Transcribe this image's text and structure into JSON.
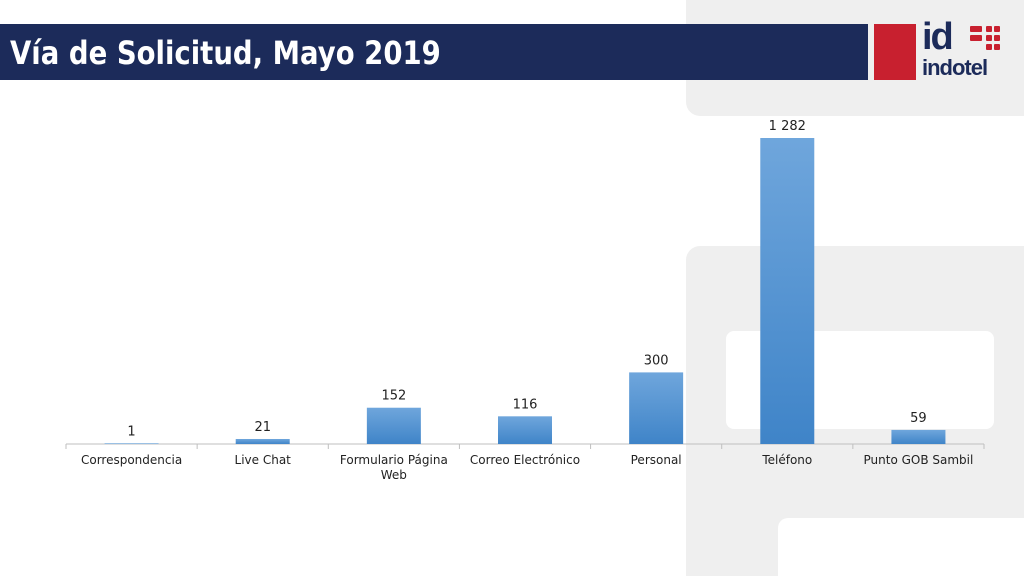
{
  "slide": {
    "title": "Vía de Solicitud, Mayo 2019",
    "logo_mark": "id",
    "logo_name": "indotel"
  },
  "colors": {
    "title_bar": "#1c2b5a",
    "brand_red": "#c8202f",
    "bar_top": "#6fa6dc",
    "bar_bottom": "#3f84c8",
    "axis": "#bfbfbf"
  },
  "chart_data": {
    "type": "bar",
    "title": "",
    "xlabel": "",
    "ylabel": "",
    "ylim": [
      0,
      1300
    ],
    "grid": false,
    "legend": "none",
    "categories": [
      "Correspondencia",
      "Live Chat",
      "Formulario Página Web",
      "Correo Electrónico",
      "Personal",
      "Teléfono",
      "Punto GOB Sambil"
    ],
    "category_lines": [
      [
        "Correspondencia"
      ],
      [
        "Live Chat"
      ],
      [
        "Formulario Página",
        "Web"
      ],
      [
        "Correo Electrónico"
      ],
      [
        "Personal"
      ],
      [
        "Teléfono"
      ],
      [
        "Punto GOB Sambil"
      ]
    ],
    "values": [
      1,
      21,
      152,
      116,
      300,
      1282,
      59
    ],
    "value_labels": [
      "1",
      "21",
      "152",
      "116",
      "300",
      "1 282",
      "59"
    ]
  }
}
